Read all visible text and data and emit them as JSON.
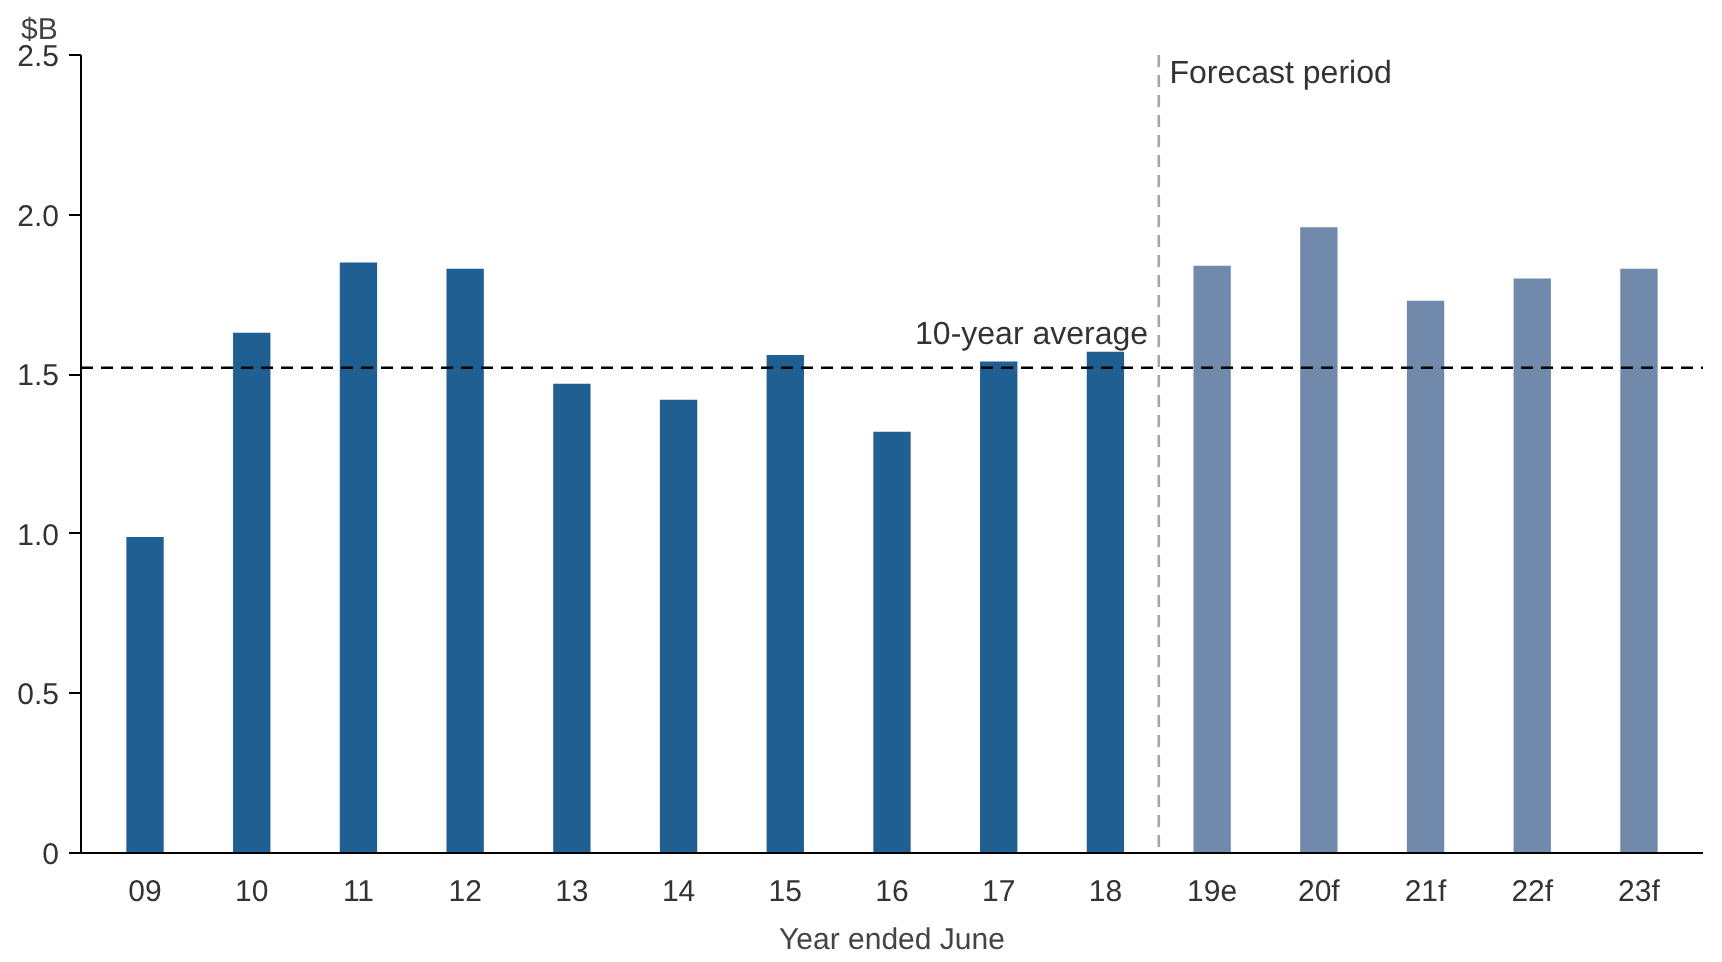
{
  "chart_data": {
    "type": "bar",
    "ylabel": "$B",
    "xlabel": "Year ended June",
    "categories": [
      "09",
      "10",
      "11",
      "12",
      "13",
      "14",
      "15",
      "16",
      "17",
      "18",
      "19e",
      "20f",
      "21f",
      "22f",
      "23f"
    ],
    "values": [
      0.99,
      1.63,
      1.85,
      1.83,
      1.47,
      1.42,
      1.56,
      1.32,
      1.54,
      1.57,
      1.84,
      1.96,
      1.73,
      1.8,
      1.83
    ],
    "colors": [
      "#1f5f91",
      "#1f5f91",
      "#1f5f91",
      "#1f5f91",
      "#1f5f91",
      "#1f5f91",
      "#1f5f91",
      "#1f5f91",
      "#1f5f91",
      "#1f5f91",
      "#7189ab",
      "#7189ab",
      "#7189ab",
      "#7189ab",
      "#7189ab"
    ],
    "ylim": [
      0,
      2.5
    ],
    "yticks": [
      0,
      {
        "value": 0.5,
        "label": "0.5"
      },
      {
        "value": 1,
        "label": "1.0"
      },
      {
        "value": 1.5,
        "label": "1.5"
      },
      {
        "value": 2,
        "label": "2.0"
      },
      {
        "value": 2.5,
        "label": "2.5"
      }
    ],
    "ref_lines": [
      {
        "axis": "y",
        "value": 1.52,
        "label": "10-year average",
        "color": "#000000",
        "line_style": "dashed"
      }
    ],
    "annotations": [
      "Forecast period"
    ],
    "grid": false
  }
}
